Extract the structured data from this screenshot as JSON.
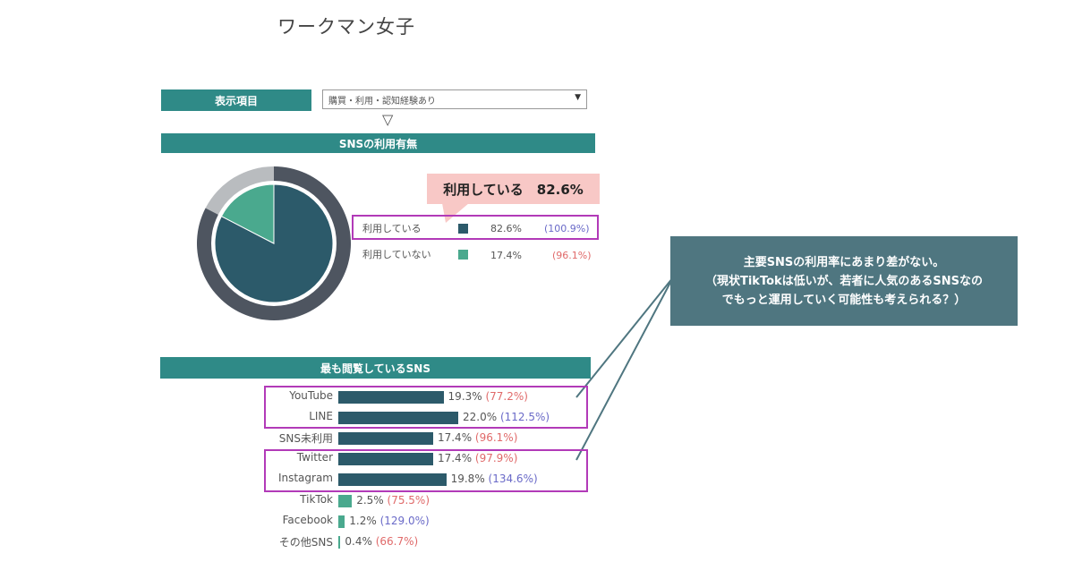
{
  "title": "ワークマン女子",
  "filter": {
    "label": "表示項目",
    "selected": "購買・利用・認知経験あり"
  },
  "callout": "利用している　82.6%",
  "note": {
    "line1": "主要SNSの利用率にあまり差がない。",
    "line2": "（現状TikTokは低いが、若者に人気のあるSNSなの",
    "line3": "でもっと運用していく可能性も考えられる？）"
  },
  "colors": {
    "teal_header": "#2f8a87",
    "dark_series": "#2c5a6a",
    "light_series": "#4aa98e",
    "pie_ring": "#4e5560",
    "pie_ring_light": "#b9bcbf",
    "highlight": "#b23ab8",
    "note_bg": "#4f7680"
  },
  "chart_data": [
    {
      "type": "pie",
      "title": "SNSの利用有無",
      "slices": [
        {
          "label": "利用している",
          "value": 82.6,
          "value_label": "82.6%",
          "index_label": "(100.9%)",
          "index_color": "blue"
        },
        {
          "label": "利用していない",
          "value": 17.4,
          "value_label": "17.4%",
          "index_label": "(96.1%)",
          "index_color": "red"
        }
      ]
    },
    {
      "type": "bar",
      "title": "最も閲覧しているSNS",
      "orientation": "horizontal",
      "categories": [
        "YouTube",
        "LINE",
        "SNS未利用",
        "Twitter",
        "Instagram",
        "TikTok",
        "Facebook",
        "その他SNS"
      ],
      "values": [
        19.3,
        22.0,
        17.4,
        17.4,
        19.8,
        2.5,
        1.2,
        0.4
      ],
      "value_labels": [
        "19.3%",
        "22.0%",
        "17.4%",
        "17.4%",
        "19.8%",
        "2.5%",
        "1.2%",
        "0.4%"
      ],
      "index_labels": [
        "(77.2%)",
        "(112.5%)",
        "(96.1%)",
        "(97.9%)",
        "(134.6%)",
        "(75.5%)",
        "(129.0%)",
        "(66.7%)"
      ],
      "index_colors": [
        "red",
        "blue",
        "red",
        "red",
        "blue",
        "red",
        "blue",
        "red"
      ],
      "bar_shades": [
        "dark",
        "dark",
        "dark",
        "dark",
        "dark",
        "light",
        "light",
        "light"
      ],
      "xlim": [
        0,
        22.0
      ]
    }
  ]
}
